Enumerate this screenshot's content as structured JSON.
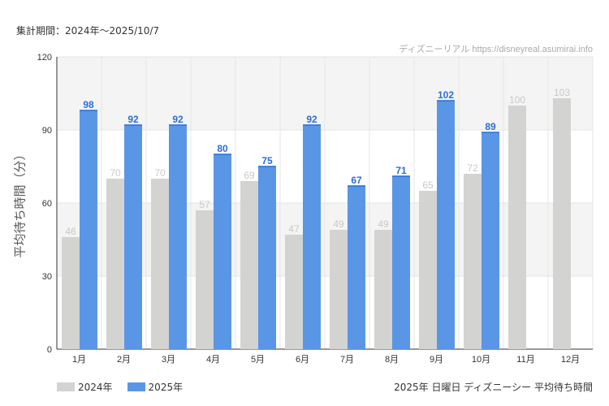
{
  "period_label": "集計期間：2024年～2025/10/7",
  "watermark": "ディズニーリアル https://disneyreal.asumirai.info",
  "subtitle": "2025年 日曜日 ディズニーシー 平均待ち時間",
  "colors": {
    "2024": "#d3d3d1",
    "2025": "#5a96e6",
    "label2025": "#2a6fd6",
    "label2024": "#c8c8c8"
  },
  "chart_data": {
    "type": "bar",
    "title": "2025年 日曜日 ディズニーシー 平均待ち時間",
    "xlabel": "",
    "ylabel": "平均待ち時間（分）",
    "ylim": [
      0,
      120
    ],
    "yticks": [
      "0",
      "30",
      "60",
      "90",
      "120"
    ],
    "categories": [
      "1月",
      "2月",
      "3月",
      "4月",
      "5月",
      "6月",
      "7月",
      "8月",
      "9月",
      "10月",
      "11月",
      "12月"
    ],
    "series": [
      {
        "name": "2024年",
        "values": [
          46,
          70,
          70,
          57,
          69,
          47,
          49,
          49,
          65,
          72,
          100,
          103
        ]
      },
      {
        "name": "2025年",
        "values": [
          98,
          92,
          92,
          80,
          75,
          92,
          67,
          71,
          102,
          89,
          null,
          null
        ]
      }
    ],
    "legend": "bottom-left",
    "grid": true
  }
}
